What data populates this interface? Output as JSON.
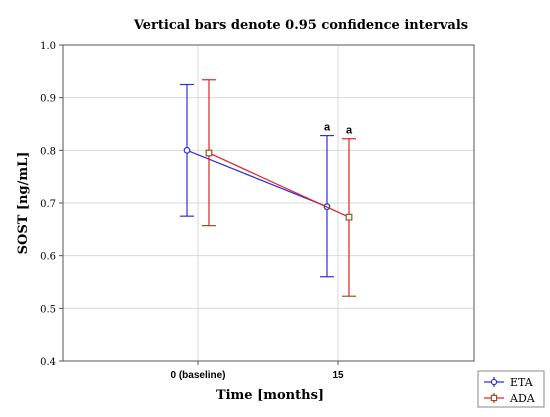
{
  "chart_data": {
    "type": "line",
    "title": "Vertical bars denote 0.95 confidence intervals",
    "xlabel": "Time [months]",
    "ylabel": "SOST [ng/mL]",
    "categories": [
      "0 (baseline)",
      "15"
    ],
    "ylim": [
      0.4,
      1.0
    ],
    "yticks": [
      "0.4",
      "0.5",
      "0.6",
      "0.7",
      "0.8",
      "0.9",
      "1.0"
    ],
    "grid": true,
    "legend_position": "bottom-right",
    "series": [
      {
        "name": "ETA",
        "color": "#2f2fe0",
        "marker": "circle",
        "values": [
          0.8,
          0.693
        ],
        "ci_low": [
          0.675,
          0.56
        ],
        "ci_high": [
          0.925,
          0.828
        ],
        "labels": [
          "",
          "a"
        ]
      },
      {
        "name": "ADA",
        "color": "#e02020",
        "marker": "square",
        "values": [
          0.795,
          0.673
        ],
        "ci_low": [
          0.657,
          0.523
        ],
        "ci_high": [
          0.934,
          0.822
        ],
        "labels": [
          "",
          "a"
        ]
      }
    ]
  }
}
